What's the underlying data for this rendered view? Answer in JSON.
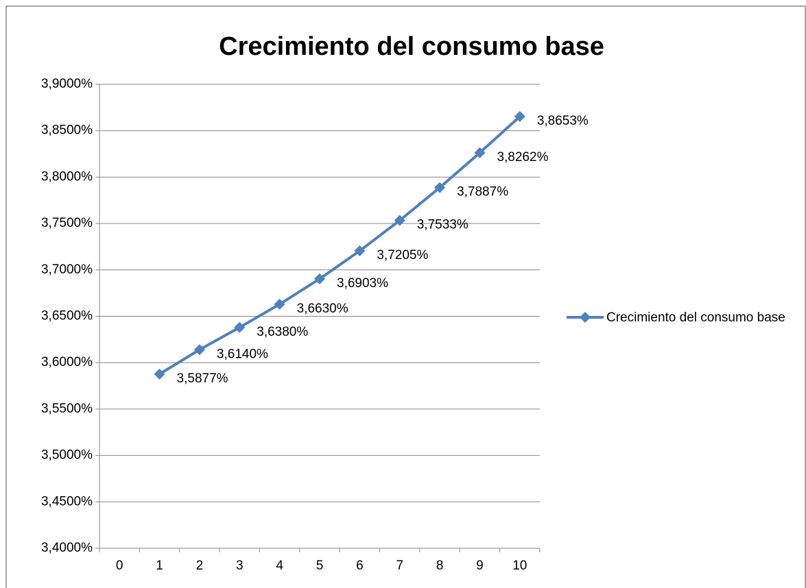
{
  "chart_data": {
    "type": "line",
    "title": "Crecimiento del consumo base",
    "categories": [
      0,
      1,
      2,
      3,
      4,
      5,
      6,
      7,
      8,
      9,
      10
    ],
    "series": [
      {
        "name": "Crecimiento del consumo base",
        "color": "#4f81bd",
        "values": [
          null,
          3.5877,
          3.614,
          3.638,
          3.663,
          3.6903,
          3.7205,
          3.7533,
          3.7887,
          3.8262,
          3.8653
        ],
        "value_labels": [
          null,
          "3,5877%",
          "3,6140%",
          "3,6380%",
          "3,6630%",
          "3,6903%",
          "3,7205%",
          "3,7533%",
          "3,7887%",
          "3,8262%",
          "3,8653%"
        ]
      }
    ],
    "ylim": [
      3.4,
      3.9
    ],
    "yticks": [
      {
        "value": 3.4,
        "label": "3,4000%"
      },
      {
        "value": 3.45,
        "label": "3,4500%"
      },
      {
        "value": 3.5,
        "label": "3,5000%"
      },
      {
        "value": 3.55,
        "label": "3,5500%"
      },
      {
        "value": 3.6,
        "label": "3,6000%"
      },
      {
        "value": 3.65,
        "label": "3,6500%"
      },
      {
        "value": 3.7,
        "label": "3,7000%"
      },
      {
        "value": 3.75,
        "label": "3,7500%"
      },
      {
        "value": 3.8,
        "label": "3,8000%"
      },
      {
        "value": 3.85,
        "label": "3,8500%"
      },
      {
        "value": 3.9,
        "label": "3,9000%"
      }
    ],
    "grid": true,
    "legend": "right"
  }
}
